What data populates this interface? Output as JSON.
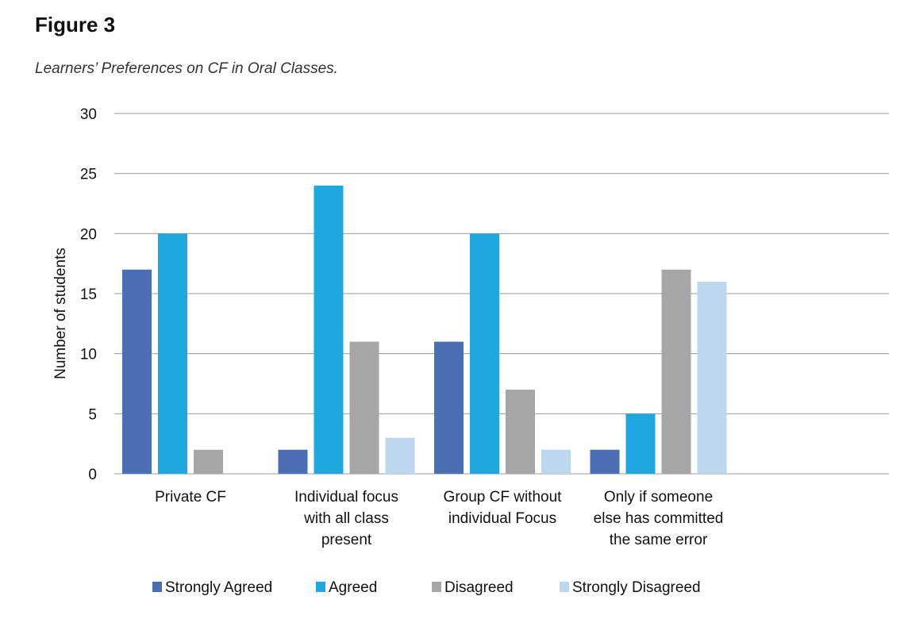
{
  "figure": {
    "label": "Figure 3",
    "caption": "Learners’ Preferences on CF in Oral Classes."
  },
  "chart_data": {
    "type": "bar",
    "title": "",
    "xlabel": "",
    "ylabel": "Number of students",
    "ylim": [
      0,
      30
    ],
    "yticks": [
      0,
      5,
      10,
      15,
      20,
      25,
      30
    ],
    "grid": true,
    "legend_position": "bottom",
    "categories": [
      [
        "Private CF"
      ],
      [
        "Individual focus",
        "with all class",
        "present"
      ],
      [
        "Group CF without",
        "individual Focus"
      ],
      [
        "Only if someone",
        "else has committed",
        "the same error"
      ]
    ],
    "series": [
      {
        "name": "Strongly Agreed",
        "color": "#4a6fb5",
        "values": [
          17,
          2,
          11,
          2
        ]
      },
      {
        "name": "Agreed",
        "color": "#1fa8e0",
        "values": [
          20,
          24,
          20,
          5
        ]
      },
      {
        "name": "Disagreed",
        "color": "#a6a6a6",
        "values": [
          2,
          11,
          7,
          17
        ]
      },
      {
        "name": "Strongly Disagreed",
        "color": "#bcd7ee",
        "values": [
          0,
          3,
          2,
          16
        ]
      }
    ],
    "gridline_color": "#9a9a9a"
  }
}
